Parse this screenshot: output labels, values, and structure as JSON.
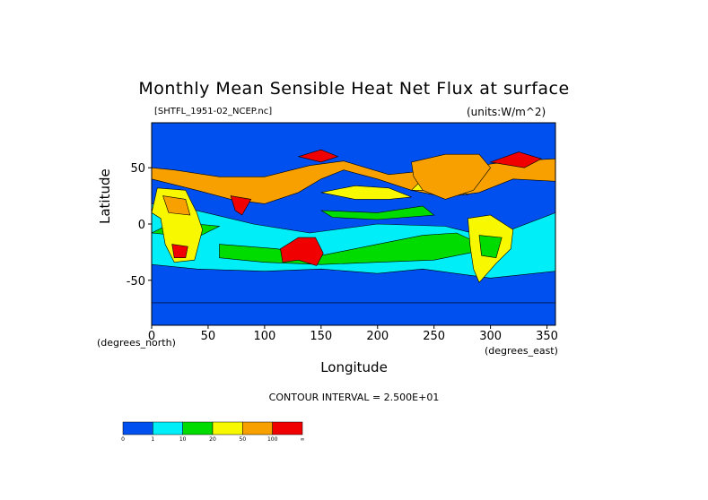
{
  "chart_data": {
    "type": "heatmap",
    "title": "Monthly Mean Sensible Heat Net Flux at surface",
    "source_label": "[SHTFL_1951-02_NCEP.nc]",
    "units_label": "(units:W/m^2)",
    "xlabel": "Longitude",
    "ylabel": "Latitude",
    "x_unit_label": "(degrees_east)",
    "y_unit_label": "(degrees_north)",
    "xlim": [
      0,
      357.5
    ],
    "ylim": [
      -90,
      90
    ],
    "x_ticks": [
      0,
      50,
      100,
      150,
      200,
      250,
      300,
      350
    ],
    "y_ticks": [
      50,
      0,
      -50
    ],
    "contour_interval_text": "CONTOUR INTERVAL = 2.500E+01",
    "colorbar": {
      "bounds": [
        "0",
        "1",
        "10",
        "20",
        "50",
        "100",
        "∞"
      ],
      "colors": [
        "#0050f0",
        "#00eef8",
        "#00dc00",
        "#f8f800",
        "#f8a000",
        "#f00000"
      ]
    },
    "data_colors": {
      "ocean_low": "#0050f0",
      "cyan": "#00eef8",
      "green": "#00dc00",
      "yellow": "#f8f800",
      "orange": "#f8a000",
      "red": "#f00000"
    }
  }
}
